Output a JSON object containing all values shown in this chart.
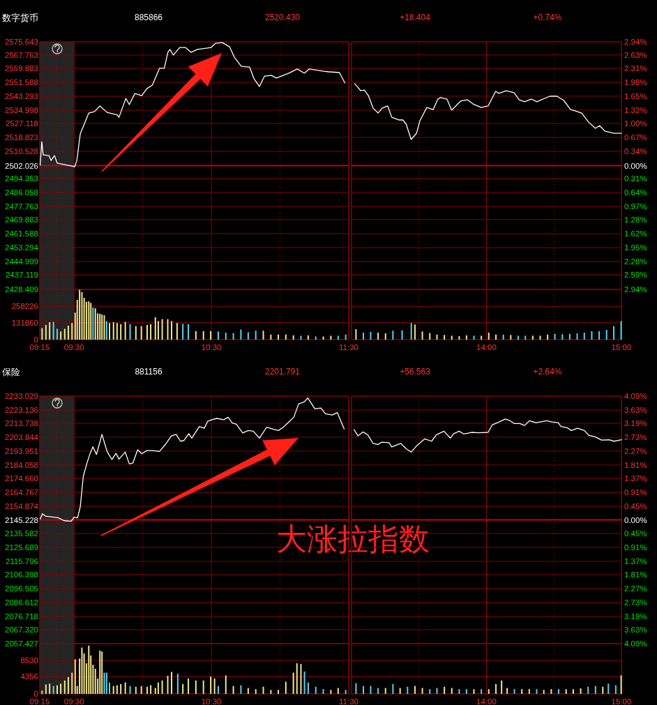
{
  "chart_data": [
    {
      "type": "line",
      "title": "数字货币",
      "annotations": [
        "885866",
        "2520.430",
        "+18.404",
        "+0.74%"
      ],
      "x": [
        9.253,
        9.265,
        9.275,
        9.317,
        9.332,
        9.357,
        9.377,
        9.458,
        9.505,
        9.52,
        9.545,
        9.607,
        9.648,
        9.688,
        9.74,
        9.815,
        9.827,
        9.877,
        9.902,
        9.943,
        9.993,
        10.03,
        10.07,
        10.122,
        10.157,
        10.183,
        10.198,
        10.223,
        10.27,
        10.31,
        10.352,
        10.397,
        10.463,
        10.498,
        10.53,
        10.58,
        10.632,
        10.667,
        10.718,
        10.778,
        10.81,
        10.85,
        10.887,
        10.937,
        10.973,
        11.023,
        11.065,
        11.125,
        11.177,
        11.212,
        11.315,
        11.355,
        11.432,
        11.472
      ],
      "values": [
        2502.3,
        2516.3,
        2508.4,
        2508.0,
        2505.1,
        2508.0,
        2503.5,
        2502.2,
        2501.4,
        2505.1,
        2520.9,
        2533.3,
        2534.1,
        2537.5,
        2533.7,
        2532.1,
        2530.8,
        2542.0,
        2538.3,
        2544.9,
        2543.7,
        2547.8,
        2549.9,
        2559.9,
        2559.9,
        2569.4,
        2571.1,
        2567.8,
        2572.3,
        2572.3,
        2569.4,
        2571.1,
        2571.9,
        2572.3,
        2574.8,
        2575.2,
        2572.7,
        2566.5,
        2561.1,
        2560.7,
        2553.7,
        2549.1,
        2555.3,
        2555.7,
        2554.1,
        2555.7,
        2557.0,
        2559.5,
        2557.0,
        2559.5,
        2558.2,
        2557.8,
        2557.4,
        2551.2
      ],
      "color": "#ffffff",
      "xlim": [
        9.25,
        11.5
      ],
      "ylim": [
        2428.409,
        2575.643
      ],
      "xticks": [
        9.25,
        9.375,
        9.5,
        10.0,
        10.5,
        11.0,
        11.5
      ],
      "yticks": [
        2575.643,
        2567.763,
        2559.883,
        2551.588,
        2543.293,
        2534.998,
        2527.118,
        2518.823,
        2510.528,
        2502.026,
        2494.353,
        2486.058,
        2477.763,
        2469.883,
        2461.588,
        2453.294,
        2444.999,
        2437.119,
        2428.409
      ],
      "ref_lines": [
        {
          "axis": "y",
          "value": 2502.026,
          "color": "#cc0000"
        }
      ],
      "bands": [
        {
          "axis": "x",
          "from": 9.25,
          "to": 9.5,
          "color": "#242424"
        }
      ],
      "grid": true,
      "tick_labels": "y"
    },
    {
      "type": "line",
      "x": [
        13.023,
        13.068,
        13.095,
        13.125,
        13.16,
        13.197,
        13.227,
        13.268,
        13.298,
        13.35,
        13.38,
        13.405,
        13.442,
        13.482,
        13.507,
        13.558,
        13.605,
        13.64,
        13.66,
        13.707,
        13.742,
        13.808,
        13.858,
        13.9,
        13.962,
        14.012,
        14.068,
        14.093,
        14.145,
        14.205,
        14.242,
        14.282,
        14.333,
        14.373,
        14.47,
        14.522,
        14.573,
        14.623,
        14.655,
        14.705,
        14.757,
        14.807,
        14.838,
        14.878,
        14.945,
        15.0
      ],
      "values": [
        2550.8,
        2546.6,
        2547.0,
        2543.7,
        2536.2,
        2533.3,
        2536.2,
        2537.5,
        2530.8,
        2529.2,
        2529.2,
        2526.7,
        2517.6,
        2521.3,
        2528.8,
        2536.6,
        2535.4,
        2541.6,
        2542.5,
        2541.6,
        2535.0,
        2540.4,
        2541.2,
        2538.7,
        2536.6,
        2537.5,
        2546.2,
        2545.0,
        2546.6,
        2545.4,
        2541.2,
        2540.0,
        2541.6,
        2540.0,
        2543.3,
        2543.3,
        2540.8,
        2535.4,
        2534.6,
        2533.3,
        2527.9,
        2524.2,
        2525.8,
        2522.5,
        2521.3,
        2521.3
      ],
      "color": "#ffffff",
      "xlim": [
        13.0,
        15.0
      ],
      "ylim": [
        2428.409,
        2575.643
      ],
      "y2lim": [
        -2.94,
        2.94
      ],
      "y2ticks": [
        {
          "value": 2.94,
          "label": "2.94%"
        },
        {
          "value": 2.63,
          "label": "2.63%"
        },
        {
          "value": 2.31,
          "label": "2.31%"
        },
        {
          "value": 1.98,
          "label": "1.98%"
        },
        {
          "value": 1.65,
          "label": "1.65%"
        },
        {
          "value": 1.32,
          "label": "1.32%"
        },
        {
          "value": 1.0,
          "label": "1.00%"
        },
        {
          "value": 0.67,
          "label": "0.67%"
        },
        {
          "value": 0.34,
          "label": "0.34%"
        },
        {
          "value": 0,
          "label": "0.00%"
        },
        {
          "value": -0.31,
          "label": "0.31%"
        },
        {
          "value": -0.64,
          "label": "0.64%"
        },
        {
          "value": -0.97,
          "label": "0.97%"
        },
        {
          "value": -1.28,
          "label": "1.28%"
        },
        {
          "value": -1.62,
          "label": "1.62%"
        },
        {
          "value": -1.95,
          "label": "1.95%"
        },
        {
          "value": -2.28,
          "label": "2.28%"
        },
        {
          "value": -2.59,
          "label": "2.59%"
        },
        {
          "value": -2.94,
          "label": "2.94%"
        }
      ],
      "ref_lines": [
        {
          "axis": "y",
          "value": 2502.026,
          "color": "#cc0000"
        }
      ],
      "grid": true,
      "tick_labels": "y2"
    },
    {
      "type": "bar",
      "x": [
        9.267,
        9.295,
        9.322,
        9.35,
        9.377,
        9.403,
        9.432,
        9.458,
        9.485,
        9.508,
        9.523,
        9.54,
        9.557,
        9.573,
        9.59,
        9.607,
        9.622,
        9.638,
        9.655,
        9.672,
        9.688,
        9.703,
        9.72,
        9.737,
        9.758,
        9.787,
        9.813,
        9.84,
        9.873,
        9.908,
        9.95,
        9.99,
        10.032,
        10.058,
        10.092,
        10.113,
        10.142,
        10.182,
        10.21,
        10.25,
        10.292,
        10.332,
        10.387,
        10.442,
        10.495,
        10.55,
        10.605,
        10.66,
        10.715,
        10.768,
        10.823,
        10.878,
        10.933,
        10.987,
        11.042,
        11.097,
        11.152,
        11.205,
        11.26,
        11.315,
        11.37,
        11.423,
        11.478
      ],
      "values": [
        90000,
        114000,
        135000,
        138000,
        84000,
        63000,
        84000,
        108000,
        129000,
        210000,
        309000,
        387000,
        369000,
        324000,
        294000,
        297000,
        285000,
        249000,
        243000,
        204000,
        201000,
        195000,
        189000,
        144000,
        129000,
        135000,
        129000,
        120000,
        138000,
        120000,
        105000,
        105000,
        114000,
        120000,
        174000,
        144000,
        159000,
        159000,
        144000,
        129000,
        123000,
        120000,
        66000,
        66000,
        66000,
        63000,
        54000,
        51000,
        78000,
        57000,
        69000,
        69000,
        39000,
        39000,
        39000,
        33000,
        30000,
        33000,
        24000,
        24000,
        30000,
        30000,
        39000
      ],
      "colors": [
        "#f0e68c",
        "#f0e68c",
        "#f0e68c",
        "#55d4f2",
        "#55d4f2",
        "#f0e68c",
        "#f0e68c",
        "#f0e68c",
        "#f0e68c",
        "#f0e68c",
        "#f0e68c",
        "#f0e68c",
        "#f0e68c",
        "#f0e68c",
        "#f0e68c",
        "#f0e68c",
        "#f0e68c",
        "#55d4f2",
        "#f0e68c",
        "#f0e68c",
        "#f0e68c",
        "#f0e68c",
        "#f0e68c",
        "#55d4f2",
        "#f0e68c",
        "#f0e68c",
        "#f0e68c",
        "#f0e68c",
        "#f0e68c",
        "#55d4f2",
        "#f0e68c",
        "#f0e68c",
        "#f0e68c",
        "#f0e68c",
        "#f0e68c",
        "#f0e68c",
        "#f0e68c",
        "#f0e68c",
        "#f0e68c",
        "#f0e68c",
        "#55d4f2",
        "#55d4f2",
        "#f0e68c",
        "#f0e68c",
        "#f0e68c",
        "#55d4f2",
        "#55d4f2",
        "#55d4f2",
        "#55d4f2",
        "#55d4f2",
        "#55d4f2",
        "#f0e68c",
        "#f0e68c",
        "#f0e68c",
        "#f0e68c",
        "#f0e68c",
        "#55d4f2",
        "#f0e68c",
        "#55d4f2",
        "#f0e68c",
        "#f0e68c",
        "#55d4f2",
        "#55d4f2"
      ],
      "xlim": [
        9.25,
        11.5
      ],
      "ylim": [
        0,
        390000
      ],
      "xticks": [
        {
          "value": 9.25,
          "label": "09:15"
        },
        {
          "value": 9.375,
          "label": null
        },
        {
          "value": 9.5,
          "label": "09:30"
        },
        {
          "value": 10.0,
          "label": null
        },
        {
          "value": 10.5,
          "label": "10:30"
        },
        {
          "value": 11.0,
          "label": null
        },
        {
          "value": 11.5,
          "label": "11:30"
        }
      ],
      "yticks": [
        0,
        131860,
        258226
      ],
      "bands": [
        {
          "axis": "x",
          "from": 9.25,
          "to": 9.5,
          "color": "#242424"
        }
      ],
      "grid": true
    },
    {
      "type": "bar",
      "x": [
        13.033,
        13.088,
        13.142,
        13.197,
        13.252,
        13.307,
        13.375,
        13.443,
        13.47,
        13.525,
        13.58,
        13.633,
        13.688,
        13.743,
        13.798,
        13.852,
        13.907,
        13.962,
        14.017,
        14.07,
        14.125,
        14.18,
        14.235,
        14.288,
        14.343,
        14.398,
        14.453,
        14.507,
        14.562,
        14.617,
        14.672,
        14.725,
        14.78,
        14.835,
        14.89,
        14.943,
        14.998
      ],
      "values": [
        81000,
        54000,
        60000,
        54000,
        48000,
        69000,
        72000,
        129000,
        117000,
        63000,
        51000,
        39000,
        36000,
        30000,
        27000,
        33000,
        30000,
        30000,
        54000,
        39000,
        39000,
        36000,
        30000,
        30000,
        30000,
        30000,
        39000,
        45000,
        42000,
        45000,
        48000,
        54000,
        66000,
        66000,
        75000,
        105000,
        144000
      ],
      "colors": [
        "#f0e68c",
        "#55d4f2",
        "#55d4f2",
        "#f0e68c",
        "#f0e68c",
        "#55d4f2",
        "#55d4f2",
        "#55d4f2",
        "#f0e68c",
        "#f0e68c",
        "#f0e68c",
        "#f0e68c",
        "#f0e68c",
        "#f0e68c",
        "#f0e68c",
        "#f0e68c",
        "#55d4f2",
        "#f0e68c",
        "#f0e68c",
        "#f0e68c",
        "#55d4f2",
        "#f0e68c",
        "#55d4f2",
        "#55d4f2",
        "#f0e68c",
        "#f0e68c",
        "#f0e68c",
        "#55d4f2",
        "#55d4f2",
        "#55d4f2",
        "#55d4f2",
        "#55d4f2",
        "#55d4f2",
        "#55d4f2",
        "#55d4f2",
        "#55d4f2",
        "#55d4f2"
      ],
      "xlim": [
        13.0,
        15.0
      ],
      "ylim": [
        0,
        390000
      ],
      "xticks": [
        {
          "value": 13.0,
          "label": null
        },
        {
          "value": 13.5,
          "label": null
        },
        {
          "value": 14.0,
          "label": "14:00"
        },
        {
          "value": 14.5,
          "label": null
        },
        {
          "value": 15.0,
          "label": "15:00"
        }
      ],
      "grid": true,
      "tick_labels": "x"
    },
    {
      "type": "line",
      "title": "保险",
      "annotations": [
        "881156",
        "2201.791",
        "+56.563",
        "+2.64%",
        "大涨拉指数"
      ],
      "x": [
        9.253,
        9.27,
        9.29,
        9.383,
        9.428,
        9.48,
        9.5,
        9.525,
        9.545,
        9.567,
        9.592,
        9.617,
        9.637,
        9.663,
        9.703,
        9.74,
        9.775,
        9.805,
        9.827,
        9.872,
        9.902,
        9.928,
        9.963,
        9.993,
        10.03,
        10.07,
        10.122,
        10.167,
        10.208,
        10.243,
        10.275,
        10.3,
        10.335,
        10.357,
        10.412,
        10.448,
        10.473,
        10.503,
        10.54,
        10.59,
        10.622,
        10.652,
        10.682,
        10.728,
        10.768,
        10.805,
        10.85,
        10.902,
        10.957,
        10.988,
        11.023,
        11.065,
        11.1,
        11.135,
        11.177,
        11.202,
        11.253,
        11.298,
        11.33,
        11.38,
        11.417,
        11.467
      ],
      "values": [
        2145.8,
        2149.6,
        2147.9,
        2146.8,
        2144.6,
        2144.3,
        2147.1,
        2146.6,
        2154.5,
        2176.0,
        2185.0,
        2192.4,
        2197.0,
        2191.6,
        2205.9,
        2193.8,
        2188.0,
        2192.4,
        2188.3,
        2193.3,
        2185.0,
        2185.5,
        2194.9,
        2192.1,
        2194.4,
        2194.4,
        2193.8,
        2199.0,
        2204.8,
        2205.9,
        2201.0,
        2201.5,
        2206.4,
        2203.2,
        2211.4,
        2210.2,
        2215.2,
        2216.3,
        2217.2,
        2216.3,
        2218.0,
        2213.9,
        2213.1,
        2206.9,
        2208.6,
        2208.1,
        2203.2,
        2210.9,
        2209.3,
        2208.6,
        2210.9,
        2214.7,
        2218.0,
        2227.4,
        2229.0,
        2231.7,
        2224.1,
        2224.6,
        2220.5,
        2219.6,
        2221.3,
        2209.7
      ],
      "color": "#ffffff",
      "xlim": [
        9.25,
        11.5
      ],
      "ylim": [
        2057.427,
        2233.029
      ],
      "xticks": [
        9.25,
        9.375,
        9.5,
        10.0,
        10.5,
        11.0,
        11.5
      ],
      "yticks": [
        2233.029,
        2223.136,
        2213.738,
        2203.844,
        2193.951,
        2184.058,
        {
          "value": 2174.66,
          "label": "2174.660"
        },
        2164.767,
        2154.874,
        2145.228,
        2135.582,
        2125.689,
        2115.796,
        2106.398,
        2096.505,
        2086.612,
        2076.718,
        {
          "value": 2067.32,
          "label": "2067.320"
        },
        2057.427
      ],
      "ref_lines": [
        {
          "axis": "y",
          "value": 2145.228,
          "color": "#cc0000"
        }
      ],
      "bands": [
        {
          "axis": "x",
          "from": 9.25,
          "to": 9.5,
          "color": "#242424"
        }
      ],
      "grid": true,
      "tick_labels": "y"
    },
    {
      "type": "line",
      "x": [
        13.018,
        13.048,
        13.085,
        13.12,
        13.16,
        13.197,
        13.222,
        13.278,
        13.298,
        13.365,
        13.405,
        13.442,
        13.482,
        13.543,
        13.593,
        13.63,
        13.685,
        13.732,
        13.757,
        13.798,
        13.833,
        13.89,
        13.94,
        14.012,
        14.043,
        14.093,
        14.14,
        14.17,
        14.205,
        14.247,
        14.282,
        14.318,
        14.368,
        14.445,
        14.487,
        14.532,
        14.552,
        14.598,
        14.628,
        14.675,
        14.725,
        14.757,
        14.807,
        14.853,
        14.908,
        14.945,
        15.0
      ],
      "values": [
        2209.3,
        2204.8,
        2207.6,
        2205.6,
        2199.4,
        2198.7,
        2200.3,
        2199.9,
        2197.0,
        2199.4,
        2195.7,
        2193.3,
        2197.7,
        2202.7,
        2201.0,
        2205.6,
        2208.1,
        2203.2,
        2206.4,
        2208.1,
        2206.1,
        2207.3,
        2207.0,
        2207.3,
        2212.6,
        2214.7,
        2216.8,
        2215.8,
        2213.6,
        2213.6,
        2212.2,
        2215.5,
        2214.2,
        2215.5,
        2214.7,
        2214.2,
        2211.4,
        2210.6,
        2208.6,
        2210.2,
        2208.6,
        2205.3,
        2204.0,
        2201.8,
        2202.0,
        2201.0,
        2202.0
      ],
      "color": "#ffffff",
      "xlim": [
        13.0,
        15.0
      ],
      "ylim": [
        2057.427,
        2233.029
      ],
      "y2lim": [
        -4.09,
        4.09
      ],
      "y2ticks": [
        {
          "value": 4.09,
          "label": "4.09%"
        },
        {
          "value": 3.63,
          "label": "3.63%"
        },
        {
          "value": 3.19,
          "label": "3.19%"
        },
        {
          "value": 2.73,
          "label": "2.73%"
        },
        {
          "value": 2.27,
          "label": "2.27%"
        },
        {
          "value": 1.81,
          "label": "1.81%"
        },
        {
          "value": 1.37,
          "label": "1.37%"
        },
        {
          "value": 0.91,
          "label": "0.91%"
        },
        {
          "value": 0.45,
          "label": "0.45%"
        },
        {
          "value": 0,
          "label": "0.00%"
        },
        {
          "value": -0.45,
          "label": "0.45%"
        },
        {
          "value": -0.91,
          "label": "0.91%"
        },
        {
          "value": -1.37,
          "label": "1.37%"
        },
        {
          "value": -1.81,
          "label": "1.81%"
        },
        {
          "value": -2.27,
          "label": "2.27%"
        },
        {
          "value": -2.73,
          "label": "2.73%"
        },
        {
          "value": -3.19,
          "label": "3.19%"
        },
        {
          "value": -3.63,
          "label": "3.63%"
        },
        {
          "value": -4.09,
          "label": "4.09%"
        }
      ],
      "ref_lines": [
        {
          "axis": "y",
          "value": 2145.228,
          "color": "#cc0000"
        }
      ],
      "grid": true,
      "tick_labels": "y2"
    },
    {
      "type": "bar",
      "x": [
        9.267,
        9.295,
        9.322,
        9.35,
        9.377,
        9.403,
        9.432,
        9.458,
        9.485,
        9.508,
        9.523,
        9.54,
        9.557,
        9.573,
        9.59,
        9.607,
        9.622,
        9.638,
        9.655,
        9.672,
        9.688,
        9.703,
        9.72,
        9.737,
        9.758,
        9.787,
        9.813,
        9.84,
        9.873,
        9.908,
        9.95,
        9.99,
        10.032,
        10.058,
        10.092,
        10.113,
        10.142,
        10.182,
        10.21,
        10.255,
        10.292,
        10.332,
        10.387,
        10.442,
        10.495,
        10.523,
        10.55,
        10.605,
        10.66,
        10.715,
        10.768,
        10.823,
        10.878,
        10.933,
        10.987,
        11.042,
        11.097,
        11.123,
        11.152,
        11.178,
        11.205,
        11.26,
        11.315,
        11.37,
        11.423,
        11.478
      ],
      "values": [
        800,
        2400,
        2600,
        2000,
        2200,
        2600,
        3400,
        4300,
        5400,
        8800,
        2000,
        9000,
        11800,
        10300,
        7800,
        12300,
        9800,
        7400,
        6400,
        3900,
        11000,
        10800,
        5400,
        5400,
        2900,
        2000,
        2200,
        2500,
        2900,
        2000,
        1800,
        2000,
        1800,
        2200,
        1500,
        2900,
        3400,
        4600,
        5600,
        5100,
        2500,
        3900,
        3400,
        3400,
        4400,
        3900,
        2000,
        4700,
        2000,
        2200,
        1500,
        1200,
        1800,
        1000,
        1000,
        3100,
        5400,
        7800,
        7600,
        5700,
        2900,
        1800,
        1200,
        1000,
        1500,
        1000
      ],
      "colors": [
        "#f0e68c",
        "#f0e68c",
        "#f0e68c",
        "#55d4f2",
        "#f0e68c",
        "#f0e68c",
        "#f0e68c",
        "#f0e68c",
        "#f0e68c",
        "#f0e68c",
        "#f0e68c",
        "#f0e68c",
        "#f0e68c",
        "#f0e68c",
        "#f0e68c",
        "#f0e68c",
        "#f0e68c",
        "#f0e68c",
        "#f0e68c",
        "#f0e68c",
        "#f0e68c",
        "#f0e68c",
        "#55d4f2",
        "#55d4f2",
        "#55d4f2",
        "#f0e68c",
        "#f0e68c",
        "#f0e68c",
        "#f0e68c",
        "#55d4f2",
        "#f0e68c",
        "#f0e68c",
        "#f0e68c",
        "#f0e68c",
        "#f0e68c",
        "#f0e68c",
        "#f0e68c",
        "#f0e68c",
        "#f0e68c",
        "#55d4f2",
        "#f0e68c",
        "#f0e68c",
        "#f0e68c",
        "#f0e68c",
        "#f0e68c",
        "#f0e68c",
        "#55d4f2",
        "#f0e68c",
        "#f0e68c",
        "#55d4f2",
        "#f0e68c",
        "#f0e68c",
        "#f0e68c",
        "#f0e68c",
        "#f0e68c",
        "#f0e68c",
        "#f0e68c",
        "#f0e68c",
        "#f0e68c",
        "#55d4f2",
        "#55d4f2",
        "#55d4f2",
        "#55d4f2",
        "#f0e68c",
        "#f0e68c",
        "#55d4f2"
      ],
      "xlim": [
        9.25,
        11.5
      ],
      "ylim": [
        0,
        12800
      ],
      "xticks": [
        {
          "value": 9.25,
          "label": "09:15"
        },
        {
          "value": 9.375,
          "label": null
        },
        {
          "value": 9.5,
          "label": "09:30"
        },
        {
          "value": 10.0,
          "label": null
        },
        {
          "value": 10.5,
          "label": "10:30"
        },
        {
          "value": 11.0,
          "label": null
        },
        {
          "value": 11.5,
          "label": "11:30"
        }
      ],
      "yticks": [
        0,
        4356,
        8530
      ],
      "bands": [
        {
          "axis": "x",
          "from": 9.25,
          "to": 9.5,
          "color": "#242424"
        }
      ],
      "grid": true
    },
    {
      "type": "bar",
      "x": [
        13.033,
        13.088,
        13.142,
        13.197,
        13.252,
        13.307,
        13.36,
        13.415,
        13.47,
        13.525,
        13.58,
        13.633,
        13.688,
        13.743,
        13.798,
        13.852,
        13.907,
        13.962,
        14.017,
        14.07,
        14.112,
        14.153,
        14.207,
        14.262,
        14.317,
        14.372,
        14.425,
        14.48,
        14.535,
        14.59,
        14.643,
        14.698,
        14.753,
        14.808,
        14.862,
        14.903,
        14.958,
        14.998
      ],
      "values": [
        2700,
        2000,
        2000,
        1500,
        1500,
        2500,
        1500,
        1800,
        2000,
        1500,
        1200,
        1500,
        1800,
        1500,
        1200,
        1200,
        1200,
        1200,
        1200,
        2500,
        3400,
        1500,
        1200,
        1200,
        1200,
        1200,
        1000,
        1200,
        1200,
        1200,
        1200,
        1400,
        1800,
        2000,
        1800,
        2600,
        2200,
        4700
      ],
      "colors": [
        "#55d4f2",
        "#55d4f2",
        "#55d4f2",
        "#55d4f2",
        "#f0e68c",
        "#55d4f2",
        "#f0e68c",
        "#55d4f2",
        "#f0e68c",
        "#f0e68c",
        "#55d4f2",
        "#55d4f2",
        "#f0e68c",
        "#f0e68c",
        "#55d4f2",
        "#55d4f2",
        "#f0e68c",
        "#55d4f2",
        "#f0e68c",
        "#f0e68c",
        "#f0e68c",
        "#f0e68c",
        "#55d4f2",
        "#f0e68c",
        "#f0e68c",
        "#55d4f2",
        "#f0e68c",
        "#f0e68c",
        "#55d4f2",
        "#f0e68c",
        "#f0e68c",
        "#f0e68c",
        "#55d4f2",
        "#55d4f2",
        "#f0e68c",
        "#55d4f2",
        "#55d4f2",
        "#f0e68c"
      ],
      "xlim": [
        13.0,
        15.0
      ],
      "ylim": [
        0,
        12800
      ],
      "xticks": [
        {
          "value": 13.0,
          "label": null
        },
        {
          "value": 13.5,
          "label": null
        },
        {
          "value": 14.0,
          "label": "14:00"
        },
        {
          "value": 14.5,
          "label": null
        },
        {
          "value": 15.0,
          "label": "15:00"
        }
      ],
      "grid": true,
      "tick_labels": "x"
    }
  ]
}
